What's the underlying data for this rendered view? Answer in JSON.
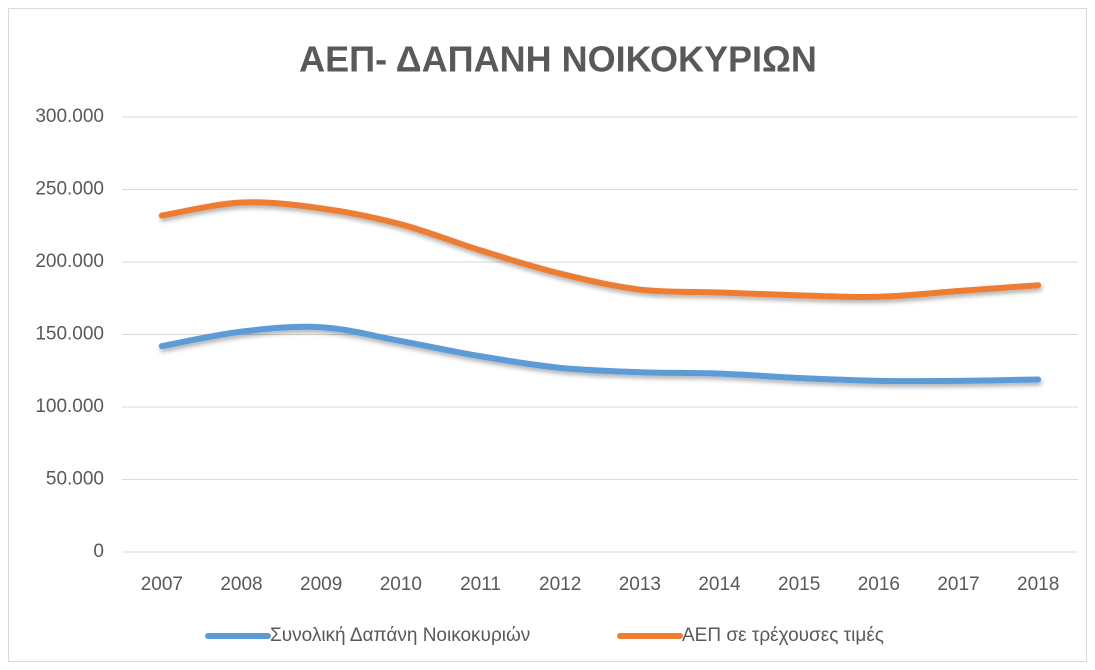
{
  "chart_data": {
    "type": "line",
    "title": "ΑΕΠ- ΔΑΠΑΝΗ ΝΟΙΚΟΚΥΡΙΩΝ",
    "categories": [
      "2007",
      "2008",
      "2009",
      "2010",
      "2011",
      "2012",
      "2013",
      "2014",
      "2015",
      "2016",
      "2017",
      "2018"
    ],
    "series": [
      {
        "name": "Συνολική Δαπάνη Νοικοκυριών",
        "color": "#5b9bd5",
        "values": [
          142000,
          152000,
          155000,
          145500,
          135000,
          127000,
          124000,
          123000,
          120000,
          118000,
          118000,
          119000
        ]
      },
      {
        "name": "ΑΕΠ σε τρέχουσες τιμές",
        "color": "#ed7d31",
        "values": [
          232000,
          241000,
          237000,
          226000,
          208000,
          192000,
          181000,
          179000,
          177000,
          176000,
          180000,
          184000
        ]
      }
    ],
    "ylim": [
      0,
      300000
    ],
    "yticks": [
      0,
      {
        "value": 50000,
        "label": "50.000"
      },
      {
        "value": 100000,
        "label": "100.000"
      },
      {
        "value": 150000,
        "label": "150.000"
      },
      {
        "value": 200000,
        "label": "200.000"
      },
      {
        "value": 250000,
        "label": "250.000"
      },
      {
        "value": 300000,
        "label": "300.000"
      }
    ],
    "grid": true,
    "legend": "bottom"
  }
}
